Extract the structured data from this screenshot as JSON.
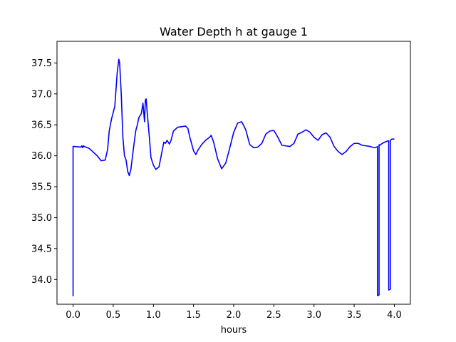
{
  "chart_data": {
    "type": "line",
    "title": "Water Depth h at gauge 1",
    "xlabel": "hours",
    "ylabel": "",
    "xlim": [
      -0.2,
      4.2
    ],
    "ylim": [
      33.6,
      37.85
    ],
    "xticks": [
      0.0,
      0.5,
      1.0,
      1.5,
      2.0,
      2.5,
      3.0,
      3.5,
      4.0
    ],
    "xtick_labels": [
      "0.0",
      "0.5",
      "1.0",
      "1.5",
      "2.0",
      "2.5",
      "3.0",
      "3.5",
      "4.0"
    ],
    "yticks": [
      34.0,
      34.5,
      35.0,
      35.5,
      36.0,
      36.5,
      37.0,
      37.5
    ],
    "ytick_labels": [
      "34.0",
      "34.5",
      "35.0",
      "35.5",
      "36.0",
      "36.5",
      "37.0",
      "37.5"
    ],
    "grid": false,
    "legend": "none",
    "series": [
      {
        "color": "#0000ff",
        "x": [
          0.0,
          0.0,
          0.01,
          0.1,
          0.11,
          0.12,
          0.13,
          0.14,
          0.2,
          0.3,
          0.35,
          0.4,
          0.43,
          0.45,
          0.48,
          0.52,
          0.55,
          0.57,
          0.58,
          0.6,
          0.62,
          0.64,
          0.66,
          0.68,
          0.7,
          0.72,
          0.75,
          0.78,
          0.8,
          0.82,
          0.85,
          0.87,
          0.88,
          0.89,
          0.9,
          0.91,
          0.92,
          0.93,
          0.95,
          0.97,
          1.0,
          1.03,
          1.07,
          1.1,
          1.13,
          1.15,
          1.17,
          1.19,
          1.2,
          1.22,
          1.25,
          1.3,
          1.35,
          1.4,
          1.43,
          1.45,
          1.5,
          1.53,
          1.55,
          1.6,
          1.65,
          1.7,
          1.72,
          1.75,
          1.8,
          1.85,
          1.9,
          1.95,
          2.0,
          2.05,
          2.1,
          2.15,
          2.2,
          2.25,
          2.3,
          2.35,
          2.4,
          2.45,
          2.5,
          2.55,
          2.6,
          2.65,
          2.7,
          2.75,
          2.8,
          2.85,
          2.9,
          2.95,
          3.0,
          3.05,
          3.1,
          3.15,
          3.2,
          3.25,
          3.3,
          3.35,
          3.4,
          3.45,
          3.5,
          3.55,
          3.6,
          3.65,
          3.7,
          3.75,
          3.78,
          3.79,
          3.79,
          3.81,
          3.81,
          3.82,
          3.85,
          3.88,
          3.9,
          3.92,
          3.93,
          3.93,
          3.95,
          3.95,
          3.97,
          4.0
        ],
        "y": [
          33.73,
          36.15,
          36.15,
          36.14,
          36.16,
          36.13,
          36.16,
          36.15,
          36.12,
          36.0,
          35.92,
          35.93,
          36.1,
          36.4,
          36.6,
          36.8,
          37.35,
          37.56,
          37.5,
          37.0,
          36.3,
          36.0,
          35.93,
          35.75,
          35.68,
          35.78,
          36.1,
          36.4,
          36.5,
          36.62,
          36.68,
          36.85,
          36.7,
          36.55,
          36.9,
          36.92,
          36.75,
          36.6,
          36.3,
          35.97,
          35.85,
          35.78,
          35.82,
          36.02,
          36.22,
          36.2,
          36.25,
          36.21,
          36.19,
          36.25,
          36.4,
          36.46,
          36.47,
          36.48,
          36.44,
          36.32,
          36.08,
          36.02,
          36.08,
          36.18,
          36.25,
          36.3,
          36.33,
          36.22,
          35.95,
          35.79,
          35.88,
          36.12,
          36.38,
          36.53,
          36.55,
          36.42,
          36.18,
          36.13,
          36.14,
          36.2,
          36.35,
          36.4,
          36.41,
          36.3,
          36.17,
          36.16,
          36.15,
          36.2,
          36.35,
          36.38,
          36.42,
          36.38,
          36.3,
          36.25,
          36.34,
          36.37,
          36.3,
          36.15,
          36.07,
          36.02,
          36.07,
          36.15,
          36.2,
          36.2,
          36.17,
          36.16,
          36.15,
          36.13,
          36.14,
          36.15,
          33.74,
          33.75,
          36.18,
          36.17,
          36.2,
          36.22,
          36.23,
          36.24,
          36.24,
          33.83,
          33.84,
          36.25,
          36.27,
          36.27
        ]
      }
    ]
  }
}
